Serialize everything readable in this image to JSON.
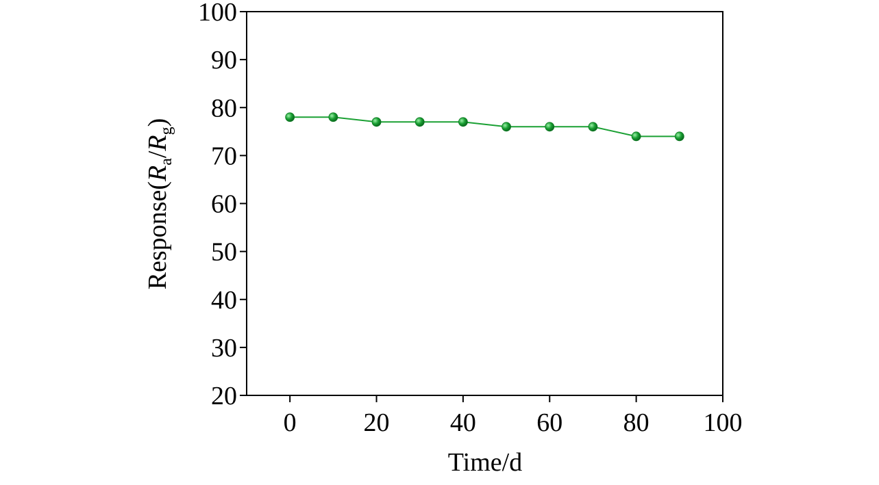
{
  "chart_data": {
    "type": "line",
    "title": "",
    "xlabel": "Time/d",
    "ylabel": {
      "prefix": "Response(",
      "r1": "R",
      "sub1": "a",
      "slash": "/",
      "r2": "R",
      "sub2": "g",
      "suffix": ")"
    },
    "xlim": [
      -10,
      100
    ],
    "ylim": [
      20,
      100
    ],
    "xticks": [
      0,
      20,
      40,
      60,
      80,
      100
    ],
    "yticks": [
      20,
      30,
      40,
      50,
      60,
      70,
      80,
      90,
      100
    ],
    "grid": false,
    "series": [
      {
        "color": "#1aa033",
        "x": [
          0,
          10,
          20,
          30,
          40,
          50,
          60,
          70,
          80,
          90
        ],
        "y": [
          78,
          78,
          77,
          77,
          77,
          76,
          76,
          76,
          74,
          74
        ]
      }
    ]
  }
}
